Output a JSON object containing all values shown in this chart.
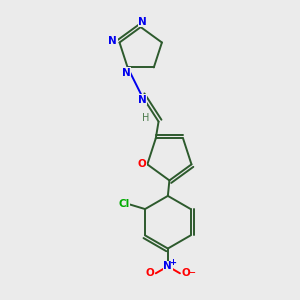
{
  "background_color": "#ebebeb",
  "bond_color": "#2d5a2d",
  "atom_colors": {
    "N": "#0000ee",
    "O": "#ff0000",
    "Cl": "#00aa00",
    "C": "#2d5a2d",
    "H": "#4a7a4a"
  },
  "figsize": [
    3.0,
    3.0
  ],
  "dpi": 100
}
